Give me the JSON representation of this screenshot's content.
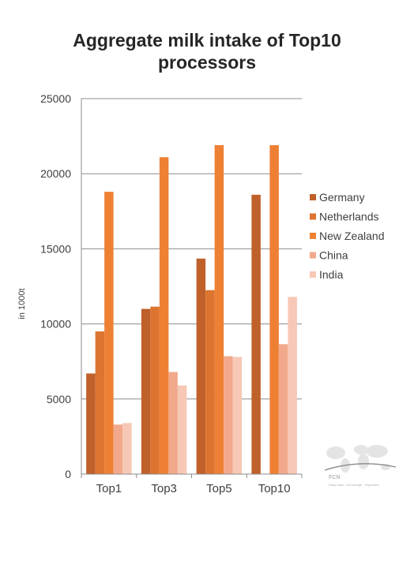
{
  "chart_data": {
    "type": "bar",
    "title_lines": [
      "Aggregate milk intake of Top10",
      "processors"
    ],
    "ylabel": "in 1000t",
    "ylim": [
      0,
      25000
    ],
    "yticks": [
      0,
      5000,
      10000,
      15000,
      20000,
      25000
    ],
    "grid": true,
    "legend_position": "right",
    "categories": [
      "Top1",
      "Top3",
      "Top5",
      "Top10"
    ],
    "series": [
      {
        "name": "Germany",
        "color": "#c0602a",
        "values": [
          6700,
          11000,
          14350,
          18600
        ]
      },
      {
        "name": "Netherlands",
        "color": "#dd742f",
        "values": [
          9500,
          11150,
          12250,
          0
        ]
      },
      {
        "name": "New Zealand",
        "color": "#ee8034",
        "values": [
          18800,
          21100,
          21900,
          21900
        ]
      },
      {
        "name": "China",
        "color": "#f2a98b",
        "values": [
          3300,
          6800,
          7850,
          8650
        ]
      },
      {
        "name": "India",
        "color": "#f6c8b5",
        "values": [
          3400,
          5900,
          7800,
          11800
        ]
      }
    ]
  },
  "logo": {
    "name": "FCN",
    "tagline": "Dairy Data · Knowledge · Inspiration",
    "icon": "world-map-icon"
  }
}
